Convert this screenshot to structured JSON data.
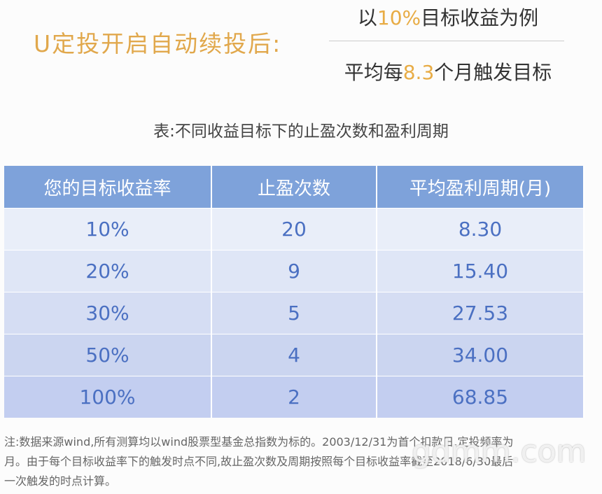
{
  "header": {
    "title": "U定投开启自动续投后:",
    "line1": {
      "prefix": "以",
      "highlight": "10%",
      "suffix": "目标收益为例"
    },
    "line2": {
      "prefix": "平均每",
      "highlight": "8.3",
      "suffix": "个月触发目标"
    }
  },
  "caption": "表:不同收益目标下的止盈次数和盈利周期",
  "table": {
    "headers": [
      "您的目标收益率",
      "止盈次数",
      "平均盈利周期(月)"
    ],
    "rows": [
      [
        "10%",
        "20",
        "8.30"
      ],
      [
        "20%",
        "9",
        "15.40"
      ],
      [
        "30%",
        "5",
        "27.53"
      ],
      [
        "50%",
        "4",
        "34.00"
      ],
      [
        "100%",
        "2",
        "68.85"
      ]
    ]
  },
  "footnote": [
    "注:数据来源wind,所有测算均以wind股票型基金总指数为标的。2003/12/31为首个扣款日,定投频率为",
    "月。由于每个目标收益率下的触发时点不同,故止盈次数及周期按照每个目标收益率截至2018/6/30最后",
    "一次触发的时点计算。"
  ],
  "watermark": "gdmm.com"
}
